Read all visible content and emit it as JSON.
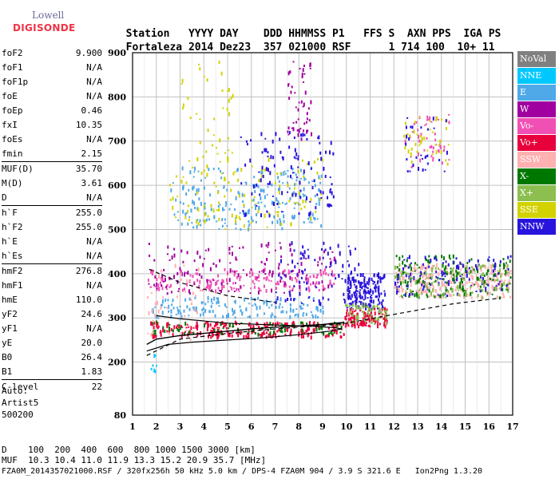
{
  "logo": {
    "line1": "Lowell",
    "line2": "DIGISONDE"
  },
  "header": {
    "labels": [
      "Station",
      "YYYY",
      "DAY",
      "DDD",
      "HHMMSS",
      "P1",
      "FFS",
      "S",
      "AXN",
      "PPS",
      "IGA",
      "PS"
    ],
    "values": [
      "Fortaleza",
      "2014",
      "Dez23",
      "357",
      "021000",
      "RSF",
      "1",
      "714",
      "100",
      "10+",
      "11"
    ]
  },
  "params": [
    [
      {
        "k": "foF2",
        "v": "9.900"
      },
      {
        "k": "foF1",
        "v": "N/A"
      },
      {
        "k": "foF1p",
        "v": "N/A"
      },
      {
        "k": "foE",
        "v": "N/A"
      },
      {
        "k": "foEp",
        "v": "0.46"
      },
      {
        "k": "fxI",
        "v": "10.35"
      },
      {
        "k": "foEs",
        "v": "N/A"
      },
      {
        "k": "fmin",
        "v": "2.15"
      }
    ],
    [
      {
        "k": "MUF(D)",
        "v": "35.70"
      },
      {
        "k": "M(D)",
        "v": "3.61"
      },
      {
        "k": "D",
        "v": "N/A"
      }
    ],
    [
      {
        "k": "h`F",
        "v": "255.0"
      },
      {
        "k": "h`F2",
        "v": "255.0"
      },
      {
        "k": "h`E",
        "v": "N/A"
      },
      {
        "k": "h`Es",
        "v": "N/A"
      }
    ],
    [
      {
        "k": "hmF2",
        "v": "276.8"
      },
      {
        "k": "hmF1",
        "v": "N/A"
      },
      {
        "k": "hmE",
        "v": "110.0"
      },
      {
        "k": "yF2",
        "v": "24.6"
      },
      {
        "k": "yF1",
        "v": "N/A"
      },
      {
        "k": "yE",
        "v": "20.0"
      },
      {
        "k": "B0",
        "v": "26.4"
      },
      {
        "k": "B1",
        "v": "1.83"
      }
    ],
    [
      {
        "k": "C-level",
        "v": "22"
      }
    ]
  ],
  "auto": {
    "l1": "Auto:",
    "l2": "Artist5",
    "l3": "500200"
  },
  "legend": [
    {
      "label": "NoVal",
      "color": "#808080"
    },
    {
      "label": "NNE",
      "color": "#00c8ff"
    },
    {
      "label": "E",
      "color": "#4fa8e8"
    },
    {
      "label": "W",
      "color": "#a000a0"
    },
    {
      "label": "Vo-",
      "color": "#f050b4"
    },
    {
      "label": "Vo+",
      "color": "#e8003c"
    },
    {
      "label": "SSW",
      "color": "#ffb0b0"
    },
    {
      "label": "X-",
      "color": "#007800"
    },
    {
      "label": "X+",
      "color": "#8cbe50"
    },
    {
      "label": "SSE",
      "color": "#d2d200"
    },
    {
      "label": "NNW",
      "color": "#2814dc"
    }
  ],
  "footer": {
    "line1": "D    100  200  400  600  800 1000 1500 3000 [km]",
    "line2": "MUF  10.3 10.4 11.0 11.9 13.3 15.2 20.9 35.7 [MHz]",
    "line3": "FZA0M_2014357021000.RSF / 320fx256h 50 kHz 5.0 km / DPS-4 FZA0M 904 / 3.9 S 321.6 E   Ion2Png 1.3.20"
  },
  "chart_data": {
    "type": "scatter",
    "xlim": [
      1,
      17
    ],
    "ylim": [
      80,
      900
    ],
    "x_ticks": [
      1,
      2,
      3,
      4,
      5,
      6,
      7,
      8,
      9,
      10,
      11,
      12,
      13,
      14,
      15,
      16,
      17
    ],
    "y_ticks": [
      80,
      200,
      300,
      400,
      500,
      600,
      700,
      800,
      900
    ],
    "grid": true,
    "legend_position": "right",
    "colors": {
      "NoVal": "#808080",
      "NNE": "#00c8ff",
      "E": "#4fa8e8",
      "W": "#a000a0",
      "Vo-": "#f050b4",
      "Vo+": "#e8003c",
      "SSW": "#ffb0b0",
      "X-": "#007800",
      "X+": "#8cbe50",
      "SSE": "#d2d200",
      "NNW": "#2814dc"
    },
    "regions": [
      {
        "label": "Vo+",
        "x": [
          1.7,
          9.9
        ],
        "y": [
          255,
          290
        ],
        "density": 260
      },
      {
        "label": "X-",
        "x": [
          1.7,
          9.9
        ],
        "y": [
          262,
          290
        ],
        "density": 80
      },
      {
        "label": "E",
        "x": [
          1.8,
          9.0
        ],
        "y": [
          300,
          345
        ],
        "density": 160
      },
      {
        "label": "Vo-",
        "x": [
          1.6,
          9.5
        ],
        "y": [
          360,
          410
        ],
        "density": 180
      },
      {
        "label": "W",
        "x": [
          1.6,
          9.5
        ],
        "y": [
          355,
          470
        ],
        "density": 150
      },
      {
        "label": "NNW",
        "x": [
          7.0,
          10.5
        ],
        "y": [
          330,
          470
        ],
        "density": 90
      },
      {
        "label": "NNW",
        "x": [
          10.0,
          11.6
        ],
        "y": [
          320,
          400
        ],
        "density": 180
      },
      {
        "label": "Vo+",
        "x": [
          9.9,
          11.7
        ],
        "y": [
          280,
          320
        ],
        "density": 120
      },
      {
        "label": "X+",
        "x": [
          9.9,
          11.7
        ],
        "y": [
          285,
          330
        ],
        "density": 60
      },
      {
        "label": "E",
        "x": [
          2.5,
          9.0
        ],
        "y": [
          500,
          640
        ],
        "density": 220
      },
      {
        "label": "SSE",
        "x": [
          2.5,
          9.0
        ],
        "y": [
          500,
          660
        ],
        "density": 120
      },
      {
        "label": "NNW",
        "x": [
          5.5,
          9.5
        ],
        "y": [
          530,
          720
        ],
        "density": 110
      },
      {
        "label": "SSE",
        "x": [
          3.0,
          5.2
        ],
        "y": [
          650,
          880
        ],
        "density": 40
      },
      {
        "label": "W",
        "x": [
          7.5,
          8.5
        ],
        "y": [
          700,
          880
        ],
        "density": 50
      },
      {
        "label": "SSW",
        "x": [
          12.0,
          16.9
        ],
        "y": [
          345,
          420
        ],
        "density": 280
      },
      {
        "label": "X-",
        "x": [
          12.0,
          16.9
        ],
        "y": [
          345,
          440
        ],
        "density": 160
      },
      {
        "label": "NNW",
        "x": [
          12.0,
          16.9
        ],
        "y": [
          350,
          440
        ],
        "density": 120
      },
      {
        "label": "X+",
        "x": [
          12.0,
          16.9
        ],
        "y": [
          345,
          420
        ],
        "density": 100
      },
      {
        "label": "Vo-",
        "x": [
          12.4,
          14.3
        ],
        "y": [
          640,
          760
        ],
        "density": 50
      },
      {
        "label": "SSE",
        "x": [
          12.4,
          14.3
        ],
        "y": [
          640,
          760
        ],
        "density": 40
      },
      {
        "label": "NNW",
        "x": [
          12.4,
          14.3
        ],
        "y": [
          630,
          760
        ],
        "density": 30
      },
      {
        "label": "SSW",
        "x": [
          1.6,
          4.0
        ],
        "y": [
          250,
          420
        ],
        "density": 40
      },
      {
        "label": "NNE",
        "x": [
          1.6,
          2.0
        ],
        "y": [
          165,
          250
        ],
        "density": 8
      }
    ],
    "profile_curve": [
      [
        1.6,
        240
      ],
      [
        2.0,
        252
      ],
      [
        3.0,
        260
      ],
      [
        4.0,
        265
      ],
      [
        5.0,
        270
      ],
      [
        6.0,
        275
      ],
      [
        7.0,
        279
      ],
      [
        8.0,
        282
      ],
      [
        9.0,
        285
      ],
      [
        9.9,
        290
      ]
    ],
    "virtual_trace": [
      [
        1.6,
        225
      ],
      [
        2.5,
        240
      ],
      [
        3.5,
        245
      ],
      [
        5.0,
        250
      ],
      [
        6.5,
        255
      ],
      [
        8.0,
        262
      ],
      [
        9.3,
        270
      ],
      [
        9.8,
        275
      ],
      [
        9.5,
        278
      ],
      [
        8.5,
        281
      ],
      [
        7.0,
        284
      ],
      [
        5.0,
        288
      ],
      [
        3.0,
        298
      ],
      [
        2.0,
        305
      ]
    ],
    "dashed_trace": [
      [
        1.6,
        215
      ],
      [
        3.0,
        252
      ],
      [
        5.0,
        265
      ],
      [
        7.0,
        275
      ],
      [
        9.0,
        283
      ],
      [
        10.0,
        288
      ],
      [
        12.0,
        308
      ],
      [
        14.5,
        332
      ],
      [
        16.5,
        345
      ]
    ],
    "upper_dashed": [
      [
        1.7,
        410
      ],
      [
        3.0,
        380
      ],
      [
        5.0,
        350
      ],
      [
        7.0,
        335
      ]
    ]
  }
}
